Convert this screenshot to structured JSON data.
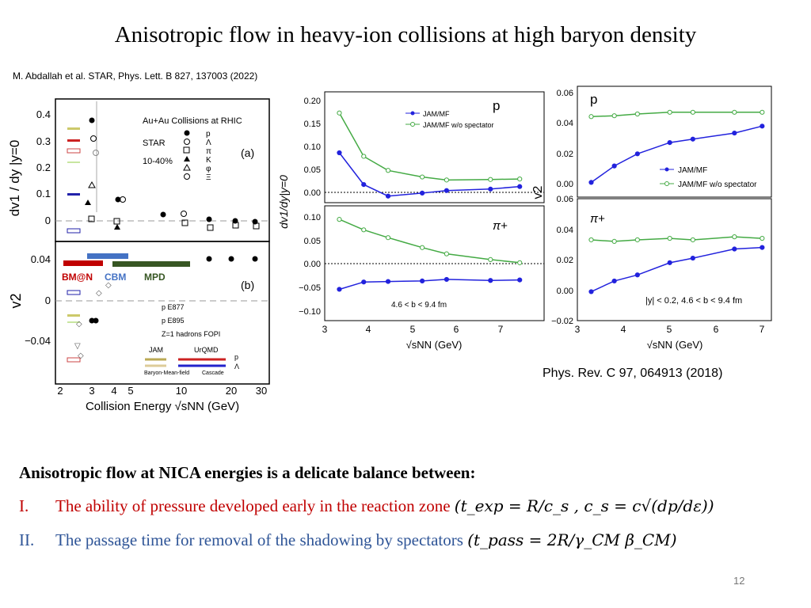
{
  "title": "Anisotropic flow in heavy-ion collisions at  high baryon density",
  "reference_left": "M. Abdallah et al. STAR, Phys. Lett. B 827, 137003 (2022)",
  "reference_right": "Phys. Rev. C 97, 064913 (2018)",
  "left_figure": {
    "ylabel_top": "dv1 / dy |y=0",
    "ylabel_bottom": "v2",
    "xlabel": "Collision Energy √sNN (GeV)",
    "xticks": [
      "2",
      "3",
      "4",
      "5",
      "10",
      "20",
      "30"
    ],
    "yticks_top": [
      "0.4",
      "0.3",
      "0.2",
      "0.1",
      "0"
    ],
    "yticks_bottom": [
      "0.04",
      "0",
      "−0.04"
    ],
    "legend_title": "Au+Au Collisions at RHIC",
    "legend_star": "STAR",
    "legend_centrality": "10-40%",
    "legend_species": [
      "p",
      "Λ",
      "π",
      "K",
      "φ",
      "Ξ"
    ],
    "panel_a": "(a)",
    "panel_b": "(b)",
    "legend_other": [
      "p   E877",
      "p   E895",
      "Z=1 hadrons   FOPI"
    ],
    "models": {
      "jam": "JAM",
      "urqmd": "UrQMD",
      "bmf": "Baryon-Mean-field",
      "cascade": "Cascade",
      "p": "p",
      "lambda": "Λ"
    },
    "facilities": [
      {
        "label": "BM@N",
        "color": "#c00000"
      },
      {
        "label": "CBM",
        "color": "#4472c4"
      },
      {
        "label": "MPD",
        "color": "#375623"
      }
    ]
  },
  "mid_figure": {
    "ylabel": "dv1/dy|y=0",
    "xlabel": "√sNN (GeV)",
    "xticks": [
      "3",
      "4",
      "5",
      "6",
      "7"
    ],
    "top_yticks": [
      "0.20",
      "0.15",
      "0.10",
      "0.05",
      "0.00"
    ],
    "bottom_yticks": [
      "0.10",
      "0.05",
      "0.00",
      "−0.05",
      "−0.10"
    ],
    "top_label": "p",
    "bottom_label": "π+",
    "legend": [
      "JAM/MF",
      "JAM/MF w/o spectator"
    ],
    "annotation": "4.6 < b < 9.4 fm"
  },
  "right_figure": {
    "ylabel": "v2",
    "xlabel": "√sNN (GeV)",
    "xticks": [
      "3",
      "4",
      "5",
      "6",
      "7"
    ],
    "top_yticks": [
      "0.06",
      "0.04",
      "0.02",
      "0.00"
    ],
    "bottom_yticks": [
      "0.06",
      "0.04",
      "0.02",
      "0.00",
      "−0.02"
    ],
    "top_label": "p",
    "bottom_label": "π+",
    "legend": [
      "JAM/MF",
      "JAM/MF w/o spectator"
    ],
    "annotation": "|y| < 0.2,    4.6 < b < 9.4 fm"
  },
  "colors": {
    "blue_series": "#2222dd",
    "green_series": "#44aa44",
    "red_text": "#c00000",
    "blue_text": "#2f5597"
  },
  "chart_data": [
    {
      "type": "line",
      "title": "",
      "label": "p",
      "xlabel": "√sNN (GeV)",
      "ylabel": "dv1/dy|y=0",
      "xlim": [
        3,
        7.5
      ],
      "ylim": [
        -0.01,
        0.21
      ],
      "series": [
        {
          "name": "JAM/MF",
          "x": [
            3.3,
            3.8,
            4.3,
            5.0,
            5.5,
            6.4,
            7.0
          ],
          "y": [
            0.089,
            0.026,
            0.003,
            0.009,
            0.014,
            0.017,
            0.022
          ]
        },
        {
          "name": "JAM/MF w/o spectator",
          "x": [
            3.3,
            3.8,
            4.3,
            5.0,
            5.5,
            6.4,
            7.0
          ],
          "y": [
            0.168,
            0.082,
            0.054,
            0.041,
            0.035,
            0.036,
            0.037
          ]
        }
      ]
    },
    {
      "type": "line",
      "title": "",
      "label": "π+",
      "xlabel": "√sNN (GeV)",
      "ylabel": "dv1/dy|y=0",
      "xlim": [
        3,
        7.5
      ],
      "ylim": [
        -0.11,
        0.11
      ],
      "series": [
        {
          "name": "JAM/MF",
          "x": [
            3.3,
            3.8,
            4.3,
            5.0,
            5.5,
            6.4,
            7.0
          ],
          "y": [
            -0.05,
            -0.036,
            -0.035,
            -0.034,
            -0.031,
            -0.033,
            -0.032
          ]
        },
        {
          "name": "JAM/MF w/o spectator",
          "x": [
            3.3,
            3.8,
            4.3,
            5.0,
            5.5,
            6.4,
            7.0
          ],
          "y": [
            0.084,
            0.064,
            0.049,
            0.03,
            0.018,
            0.007,
            0.001
          ]
        }
      ]
    },
    {
      "type": "line",
      "title": "",
      "label": "p",
      "xlabel": "√sNN (GeV)",
      "ylabel": "v2",
      "xlim": [
        3,
        7.2
      ],
      "ylim": [
        -0.002,
        0.062
      ],
      "series": [
        {
          "name": "JAM/MF",
          "x": [
            3.3,
            3.8,
            4.3,
            5.0,
            5.5,
            6.4,
            7.0
          ],
          "y": [
            0.0065,
            0.016,
            0.023,
            0.0295,
            0.0315,
            0.035,
            0.039
          ]
        },
        {
          "name": "JAM/MF w/o spectator",
          "x": [
            3.3,
            3.8,
            4.3,
            5.0,
            5.5,
            6.4,
            7.0
          ],
          "y": [
            0.0445,
            0.045,
            0.046,
            0.047,
            0.047,
            0.047,
            0.047
          ]
        }
      ]
    },
    {
      "type": "line",
      "title": "",
      "label": "π+",
      "xlabel": "√sNN (GeV)",
      "ylabel": "v2",
      "xlim": [
        3,
        7.2
      ],
      "ylim": [
        -0.02,
        0.06
      ],
      "series": [
        {
          "name": "JAM/MF",
          "x": [
            3.3,
            3.8,
            4.3,
            5.0,
            5.5,
            6.4,
            7.0
          ],
          "y": [
            -0.001,
            0.006,
            0.01,
            0.018,
            0.021,
            0.027,
            0.028
          ]
        },
        {
          "name": "JAM/MF w/o spectator",
          "x": [
            3.3,
            3.8,
            4.3,
            5.0,
            5.5,
            6.4,
            7.0
          ],
          "y": [
            0.033,
            0.032,
            0.033,
            0.034,
            0.033,
            0.035,
            0.034
          ]
        }
      ]
    }
  ],
  "text": {
    "heading": "Anisotropic flow at NICA energies is a delicate balance between:",
    "item1_num": "I.",
    "item1": "The ability of pressure developed early in the reaction zone ",
    "item1_formula": "(t_exp = R/c_s , c_s = c√(dp/dε))",
    "item2_num": "II.",
    "item2": "The passage time for removal of the shadowing by spectators ",
    "item2_formula": "(t_pass = 2R/γ_CM β_CM)",
    "page_number": "12"
  }
}
